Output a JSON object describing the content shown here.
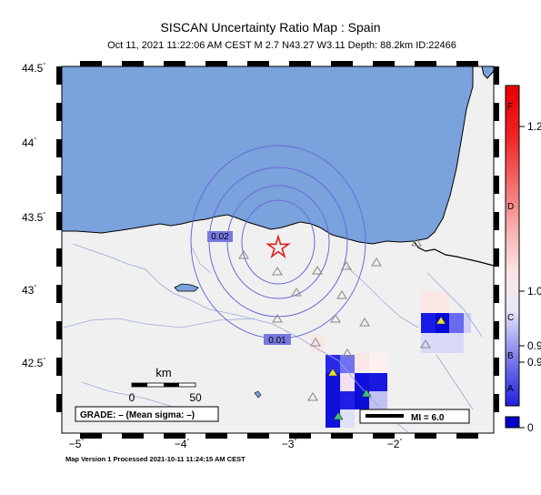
{
  "title": "SISCAN Uncertainty Ratio Map : Spain",
  "subtitle": "Oct 11, 2021 11:22:06 AM CEST   M 2.7   N43.27 W3.11   Depth: 88.2km   ID:22466",
  "y_ticks": [
    {
      "label": "44.5",
      "deg": "°"
    },
    {
      "label": "44",
      "deg": "°"
    },
    {
      "label": "43.5",
      "deg": "°"
    },
    {
      "label": "43",
      "deg": "°"
    },
    {
      "label": "42.5",
      "deg": "°"
    }
  ],
  "x_ticks": [
    {
      "label": "−5",
      "deg": "°"
    },
    {
      "label": "−4",
      "deg": "°"
    },
    {
      "label": "−3",
      "deg": "°"
    },
    {
      "label": "−2",
      "deg": "°"
    }
  ],
  "contours": [
    "0.02",
    "0.01"
  ],
  "scale_bar": {
    "unit": "km",
    "start": "0",
    "end": "50"
  },
  "grade": "GRADE: – (Mean sigma: –)",
  "mi_legend": "MI = 6.0",
  "colorbar": {
    "letters": [
      "F",
      "D",
      "C",
      "B",
      "A"
    ],
    "values": [
      "1.2",
      "1.0",
      "0.9",
      "0.9",
      "0"
    ]
  },
  "footer": "Map Version 1 Processed 2021-10-11 11:24:15 AM CEST",
  "colors": {
    "sea": "#7aa2dc",
    "land": "#f0f0f0",
    "contour": "#6a6adc",
    "epicenter": "#e02020",
    "station_hi": "#e8e02a"
  }
}
